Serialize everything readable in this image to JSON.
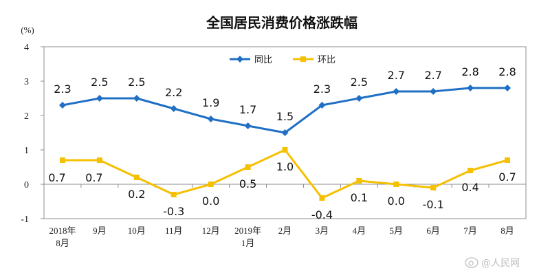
{
  "chart_data": {
    "type": "line",
    "title": "全国居民消费价格涨跌幅",
    "unit_label": "(%)",
    "categories": [
      [
        "2018年",
        "8月"
      ],
      [
        "9月"
      ],
      [
        "10月"
      ],
      [
        "11月"
      ],
      [
        "12月"
      ],
      [
        "2019年",
        "1月"
      ],
      [
        "2月"
      ],
      [
        "3月"
      ],
      [
        "4月"
      ],
      [
        "5月"
      ],
      [
        "6月"
      ],
      [
        "7月"
      ],
      [
        "8月"
      ]
    ],
    "ylim": [
      -1,
      4
    ],
    "yticks": [
      "4",
      "3",
      "2",
      "1",
      "0",
      "-1"
    ],
    "ytick_values": [
      4,
      3,
      2,
      1,
      0,
      -1
    ],
    "legend_position": "top-center",
    "grid": false,
    "series": [
      {
        "name": "同比",
        "color": "#1f6fc5",
        "marker": "diamond",
        "values": [
          2.3,
          2.5,
          2.5,
          2.2,
          1.9,
          1.7,
          1.5,
          2.3,
          2.5,
          2.7,
          2.7,
          2.8,
          2.8
        ],
        "labels": [
          "2.3",
          "2.5",
          "2.5",
          "2.2",
          "1.9",
          "1.7",
          "1.5",
          "2.3",
          "2.5",
          "2.7",
          "2.7",
          "2.8",
          "2.8"
        ]
      },
      {
        "name": "环比",
        "color": "#f5c000",
        "marker": "square",
        "values": [
          0.7,
          0.7,
          0.2,
          -0.3,
          0.0,
          0.5,
          1.0,
          -0.4,
          0.1,
          0.0,
          -0.1,
          0.4,
          0.7
        ],
        "labels": [
          "0.7",
          "0.7",
          "0.2",
          "-0.3",
          "0.0",
          "0.5",
          "1.0",
          "-0.4",
          "0.1",
          "0.0",
          "-0.1",
          "0.4",
          "0.7"
        ]
      }
    ]
  },
  "watermark": "@人民网"
}
